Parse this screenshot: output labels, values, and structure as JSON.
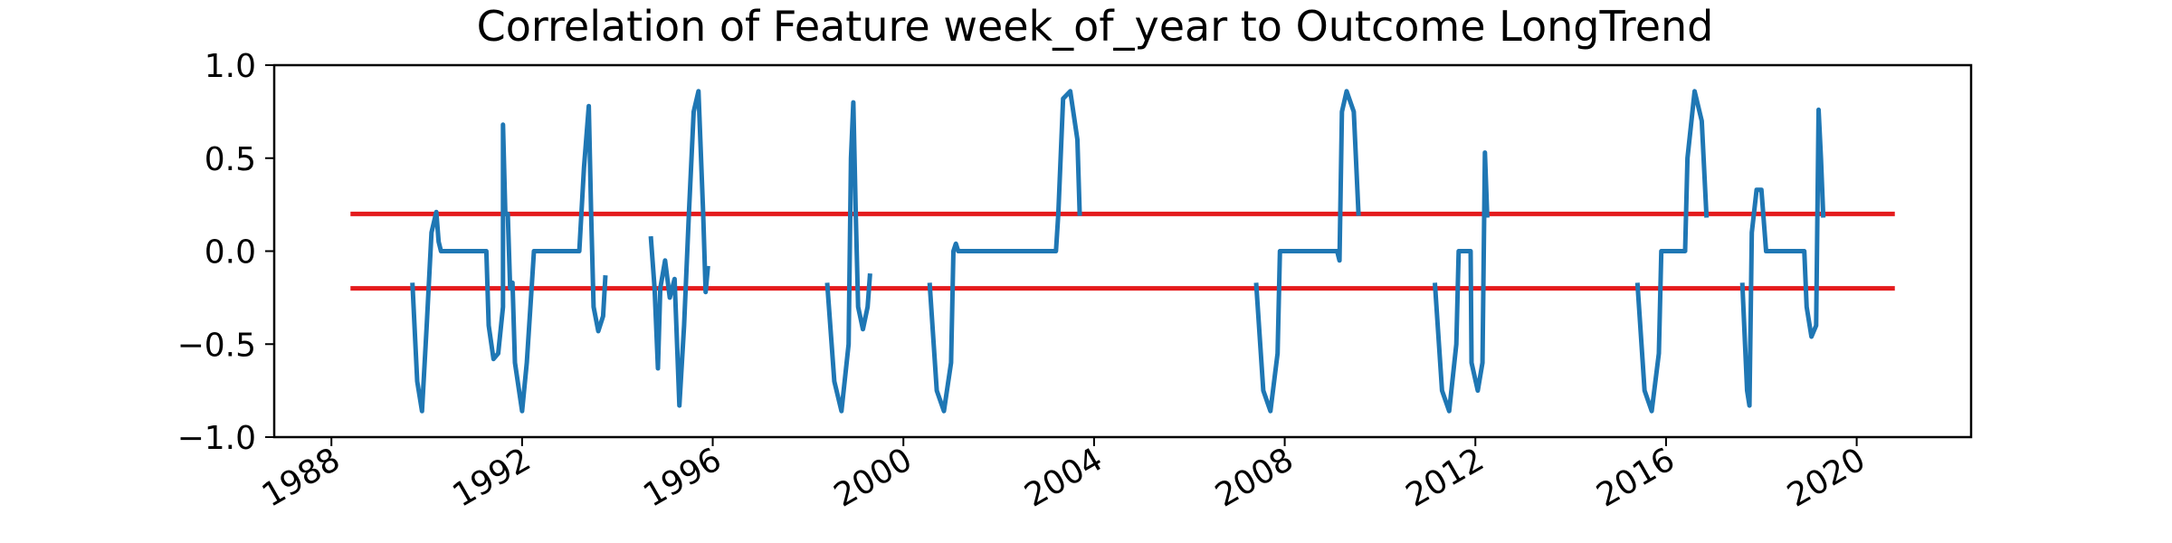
{
  "chart_data": {
    "type": "line",
    "title": "Correlation of Feature week_of_year to Outcome LongTrend",
    "xlabel": "",
    "ylabel": "",
    "xlim": [
      1986.8,
      2022.4
    ],
    "ylim": [
      -1.0,
      1.0
    ],
    "x_ticks": [
      1988,
      1992,
      1996,
      2000,
      2004,
      2008,
      2012,
      2016,
      2020
    ],
    "x_tick_labels": [
      "1988",
      "1992",
      "1996",
      "2000",
      "2004",
      "2008",
      "2012",
      "2016",
      "2020"
    ],
    "y_ticks": [
      -1.0,
      -0.5,
      0.0,
      0.5,
      1.0
    ],
    "y_tick_labels": [
      "−1.0",
      "−0.5",
      "0.0",
      "0.5",
      "1.0"
    ],
    "grid": false,
    "colors": {
      "series": "#1f77b4",
      "threshold": "#e41a1c",
      "axes": "#000000"
    },
    "thresholds": [
      {
        "y": 0.2,
        "x_range": [
          1988.4,
          2020.8
        ]
      },
      {
        "y": -0.2,
        "x_range": [
          1988.4,
          2020.8
        ]
      }
    ],
    "series": [
      {
        "segments": [
          [
            [
              1989.7,
              -0.17
            ],
            [
              1989.8,
              -0.7
            ],
            [
              1989.9,
              -0.86
            ],
            [
              1990.0,
              -0.4
            ],
            [
              1990.1,
              0.1
            ],
            [
              1990.2,
              0.21
            ],
            [
              1990.25,
              0.05
            ],
            [
              1990.3,
              0.0
            ],
            [
              1991.25,
              0.0
            ],
            [
              1991.3,
              -0.4
            ],
            [
              1991.4,
              -0.58
            ],
            [
              1991.5,
              -0.55
            ],
            [
              1991.6,
              -0.3
            ],
            [
              1991.6,
              0.68
            ],
            [
              1991.65,
              0.2
            ],
            [
              1991.7,
              0.2
            ],
            [
              1991.75,
              -0.2
            ],
            [
              1991.8,
              -0.17
            ],
            [
              1991.85,
              -0.6
            ],
            [
              1992.0,
              -0.86
            ],
            [
              1992.1,
              -0.6
            ],
            [
              1992.2,
              -0.2
            ],
            [
              1992.25,
              0.0
            ],
            [
              1993.2,
              0.0
            ],
            [
              1993.3,
              0.45
            ],
            [
              1993.4,
              0.78
            ],
            [
              1993.45,
              0.2
            ],
            [
              1993.5,
              -0.3
            ],
            [
              1993.6,
              -0.43
            ],
            [
              1993.7,
              -0.35
            ],
            [
              1993.75,
              -0.13
            ]
          ],
          [
            [
              1994.7,
              0.08
            ],
            [
              1994.78,
              -0.2
            ],
            [
              1994.85,
              -0.63
            ],
            [
              1994.9,
              -0.2
            ],
            [
              1995.0,
              -0.05
            ],
            [
              1995.1,
              -0.25
            ],
            [
              1995.2,
              -0.15
            ],
            [
              1995.3,
              -0.83
            ],
            [
              1995.4,
              -0.4
            ],
            [
              1995.5,
              0.2
            ],
            [
              1995.6,
              0.75
            ],
            [
              1995.7,
              0.86
            ],
            [
              1995.8,
              0.2
            ],
            [
              1995.85,
              -0.22
            ],
            [
              1995.9,
              -0.08
            ]
          ],
          [
            [
              1998.4,
              -0.17
            ],
            [
              1998.55,
              -0.7
            ],
            [
              1998.7,
              -0.86
            ],
            [
              1998.85,
              -0.5
            ],
            [
              1998.9,
              0.5
            ],
            [
              1998.95,
              0.8
            ],
            [
              1999.0,
              0.2
            ],
            [
              1999.05,
              -0.3
            ],
            [
              1999.15,
              -0.42
            ],
            [
              1999.25,
              -0.3
            ],
            [
              1999.3,
              -0.12
            ]
          ],
          [
            [
              2000.55,
              -0.17
            ],
            [
              2000.7,
              -0.75
            ],
            [
              2000.85,
              -0.86
            ],
            [
              2001.0,
              -0.6
            ],
            [
              2001.05,
              0.0
            ],
            [
              2001.1,
              0.04
            ],
            [
              2001.15,
              0.0
            ],
            [
              2003.2,
              0.0
            ],
            [
              2003.25,
              0.2
            ],
            [
              2003.35,
              0.82
            ],
            [
              2003.5,
              0.86
            ],
            [
              2003.65,
              0.6
            ],
            [
              2003.7,
              0.19
            ]
          ],
          [
            [
              2007.4,
              -0.17
            ],
            [
              2007.55,
              -0.75
            ],
            [
              2007.7,
              -0.86
            ],
            [
              2007.85,
              -0.55
            ],
            [
              2007.9,
              0.0
            ],
            [
              2009.1,
              0.0
            ],
            [
              2009.15,
              -0.05
            ],
            [
              2009.2,
              0.75
            ],
            [
              2009.3,
              0.86
            ],
            [
              2009.45,
              0.75
            ],
            [
              2009.55,
              0.19
            ]
          ],
          [
            [
              2011.15,
              -0.17
            ],
            [
              2011.3,
              -0.75
            ],
            [
              2011.45,
              -0.86
            ],
            [
              2011.6,
              -0.5
            ],
            [
              2011.65,
              0.0
            ],
            [
              2011.9,
              0.0
            ],
            [
              2011.92,
              -0.6
            ],
            [
              2012.05,
              -0.75
            ],
            [
              2012.15,
              -0.6
            ],
            [
              2012.2,
              0.53
            ],
            [
              2012.25,
              0.18
            ]
          ],
          [
            [
              2015.4,
              -0.17
            ],
            [
              2015.55,
              -0.75
            ],
            [
              2015.7,
              -0.86
            ],
            [
              2015.85,
              -0.55
            ],
            [
              2015.9,
              0.0
            ],
            [
              2016.4,
              0.0
            ],
            [
              2016.45,
              0.5
            ],
            [
              2016.6,
              0.86
            ],
            [
              2016.75,
              0.7
            ],
            [
              2016.85,
              0.18
            ]
          ],
          [
            [
              2017.6,
              -0.17
            ],
            [
              2017.7,
              -0.75
            ],
            [
              2017.75,
              -0.83
            ],
            [
              2017.8,
              0.1
            ],
            [
              2017.9,
              0.33
            ],
            [
              2018.0,
              0.33
            ],
            [
              2018.1,
              0.0
            ],
            [
              2018.9,
              0.0
            ],
            [
              2018.95,
              -0.3
            ],
            [
              2019.05,
              -0.46
            ],
            [
              2019.15,
              -0.4
            ],
            [
              2019.2,
              0.76
            ],
            [
              2019.25,
              0.5
            ],
            [
              2019.3,
              0.18
            ]
          ]
        ]
      }
    ]
  }
}
